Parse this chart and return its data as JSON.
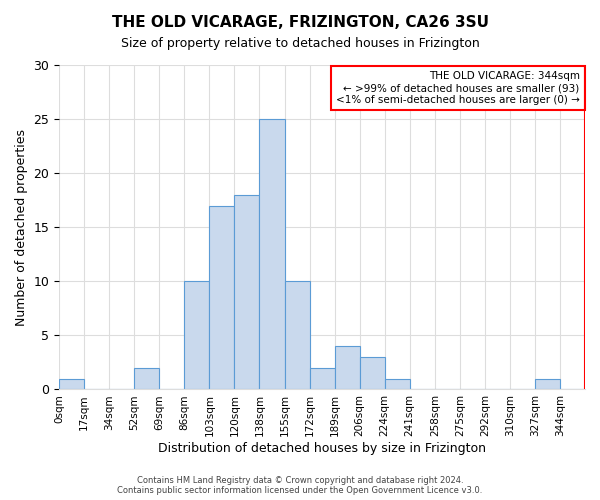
{
  "title": "THE OLD VICARAGE, FRIZINGTON, CA26 3SU",
  "subtitle": "Size of property relative to detached houses in Frizington",
  "xlabel": "Distribution of detached houses by size in Frizington",
  "ylabel": "Number of detached properties",
  "bin_labels": [
    "0sqm",
    "17sqm",
    "34sqm",
    "52sqm",
    "69sqm",
    "86sqm",
    "103sqm",
    "120sqm",
    "138sqm",
    "155sqm",
    "172sqm",
    "189sqm",
    "206sqm",
    "224sqm",
    "241sqm",
    "258sqm",
    "275sqm",
    "292sqm",
    "310sqm",
    "327sqm",
    "344sqm"
  ],
  "bar_heights": [
    1,
    0,
    0,
    2,
    0,
    10,
    17,
    18,
    25,
    10,
    2,
    4,
    3,
    1,
    0,
    0,
    0,
    0,
    0,
    1,
    0
  ],
  "bar_color": "#c9d9ed",
  "bar_edge_color": "#5b9bd5",
  "annotation_title": "THE OLD VICARAGE: 344sqm",
  "annotation_line1": "← >99% of detached houses are smaller (93)",
  "annotation_line2": "<1% of semi-detached houses are larger (0) →",
  "annotation_box_color": "white",
  "annotation_box_edge": "red",
  "vline_color": "red",
  "ylim": [
    0,
    30
  ],
  "yticks": [
    0,
    5,
    10,
    15,
    20,
    25,
    30
  ],
  "footer": "Contains HM Land Registry data © Crown copyright and database right 2024.\nContains public sector information licensed under the Open Government Licence v3.0.",
  "background_color": "white",
  "grid_color": "#dddddd"
}
